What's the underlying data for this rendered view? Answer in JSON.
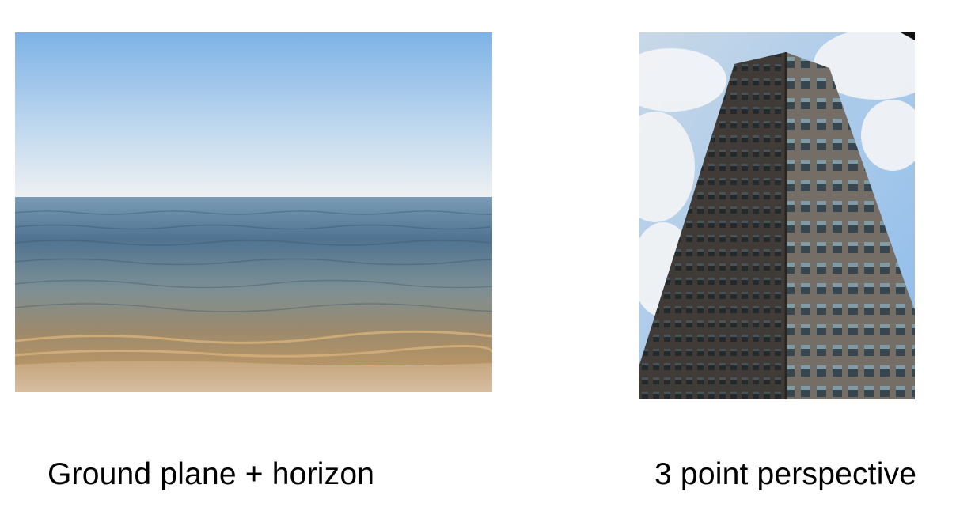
{
  "slide": {
    "images": [
      {
        "subject": "sea-horizon",
        "caption": "Ground plane + horizon"
      },
      {
        "subject": "high-rise-tower",
        "caption": "3 point perspective"
      }
    ]
  },
  "colors": {
    "sky_top": "#7fb4e6",
    "sky_horizon": "#eef0f2",
    "water_far": "#6d92ad",
    "water_near": "#a98a5f",
    "sand": "#cdb08f",
    "building": "#5d5752",
    "building_shadow": "#3f3a36",
    "tower_sky": "#9cc5ec",
    "cloud": "#f4f5f7"
  }
}
